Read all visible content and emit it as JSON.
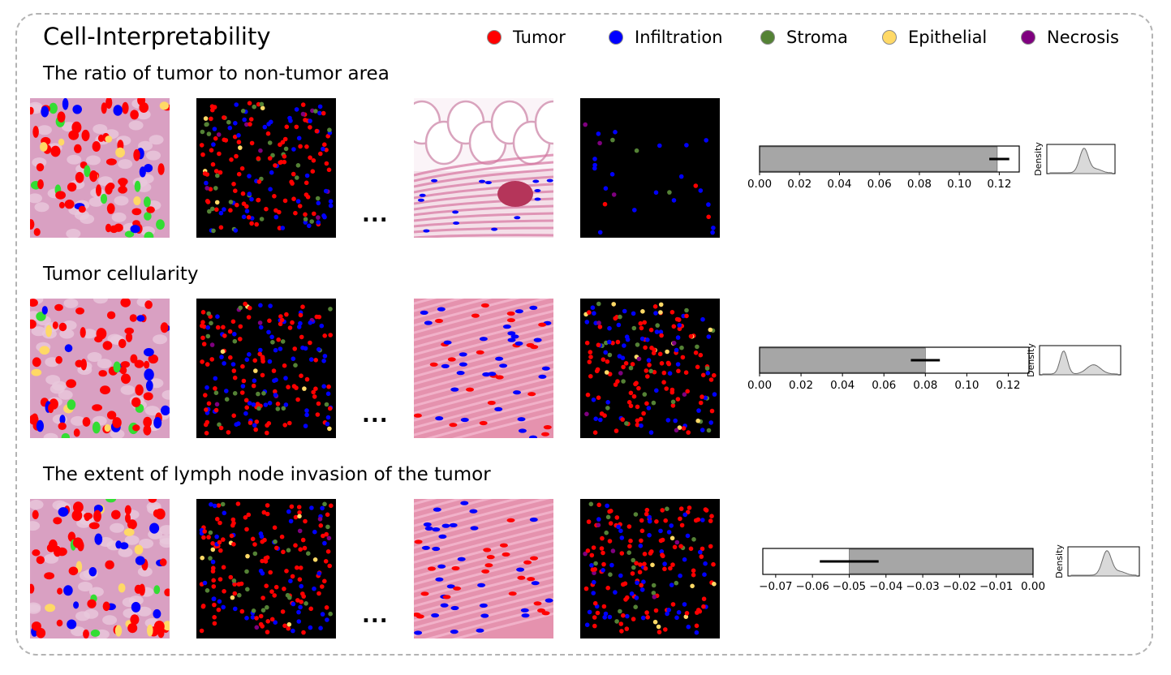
{
  "title": "Cell-Interpretability",
  "legend": [
    {
      "label": "Tumor",
      "color": "#ff0000"
    },
    {
      "label": "Infiltration",
      "color": "#0000ff"
    },
    {
      "label": "Stroma",
      "color": "#548235"
    },
    {
      "label": "Epithelial",
      "color": "#ffd966"
    },
    {
      "label": "Necrosis",
      "color": "#7f007f"
    }
  ],
  "ellipsis": "...",
  "rows": [
    {
      "title": "The ratio of tumor to non-tumor area"
    },
    {
      "title": "Tumor cellularity"
    },
    {
      "title": "The extent of lymph node invasion of the tumor"
    }
  ],
  "chart_data": [
    {
      "type": "bar",
      "orientation": "horizontal",
      "values": [
        0.119
      ],
      "error_range": [
        0.115,
        0.125
      ],
      "xlim": [
        0,
        0.13
      ],
      "xticks": [
        "0.00",
        "0.02",
        "0.04",
        "0.06",
        "0.08",
        "0.10",
        "0.12"
      ],
      "density_ylabel": "Density",
      "density_shape": "unimodal"
    },
    {
      "type": "bar",
      "orientation": "horizontal",
      "values": [
        0.08
      ],
      "error_range": [
        0.073,
        0.087
      ],
      "xlim": [
        0,
        0.13
      ],
      "xticks": [
        "0.00",
        "0.02",
        "0.04",
        "0.06",
        "0.08",
        "0.10",
        "0.12"
      ],
      "density_ylabel": "Density",
      "density_shape": "bimodal"
    },
    {
      "type": "bar",
      "orientation": "horizontal",
      "values": [
        -0.05
      ],
      "error_range": [
        -0.058,
        -0.042
      ],
      "xlim": [
        -0.0735,
        0
      ],
      "xticks": [
        "−0.07",
        "−0.06",
        "−0.05",
        "−0.04",
        "−0.03",
        "−0.02",
        "−0.01",
        "0.00"
      ],
      "density_ylabel": "Density",
      "density_shape": "unimodal"
    }
  ]
}
